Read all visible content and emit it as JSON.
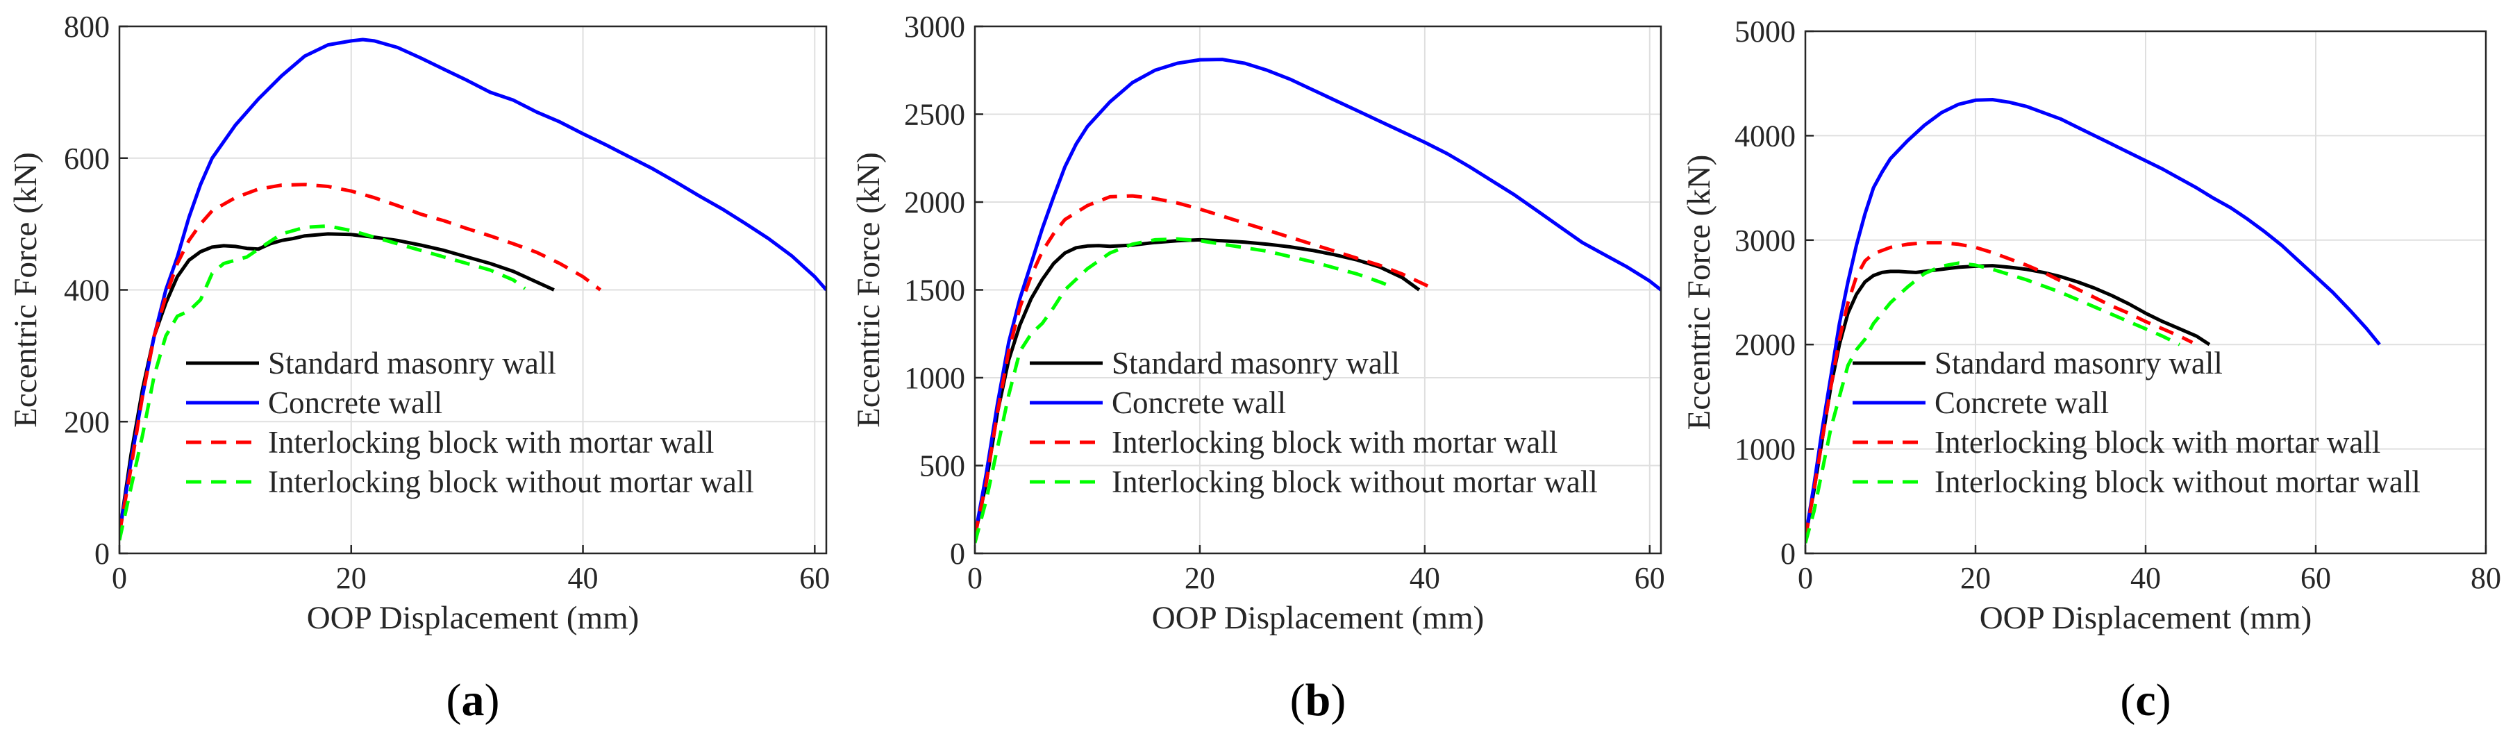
{
  "chart_data": [
    {
      "type": "line",
      "panel_label": "(a)",
      "panel_letter": "a",
      "xlabel": "OOP Displacement (mm)",
      "ylabel": "Eccentric Force (kN)",
      "xlim": [
        0,
        61
      ],
      "ylim": [
        0,
        800
      ],
      "xticks": [
        0,
        20,
        40,
        60
      ],
      "yticks": [
        0,
        200,
        400,
        600,
        800
      ],
      "grid": true,
      "legend_position": "lower-center",
      "series": [
        {
          "name": "Standard masonry wall",
          "color": "#000000",
          "style": "solid",
          "x": [
            0,
            1,
            2,
            3,
            4,
            5,
            6,
            7,
            8,
            9,
            10,
            11,
            12,
            13,
            14,
            15,
            16,
            18,
            20,
            22,
            24,
            26,
            28,
            30,
            32,
            34,
            36,
            37.5
          ],
          "y": [
            30,
            150,
            250,
            330,
            380,
            420,
            445,
            458,
            465,
            467,
            466,
            463,
            462,
            470,
            475,
            478,
            482,
            485,
            484,
            480,
            475,
            468,
            460,
            450,
            440,
            428,
            412,
            400
          ]
        },
        {
          "name": "Concrete wall",
          "color": "#0000ff",
          "style": "solid",
          "x": [
            0,
            1,
            2,
            3,
            4,
            5,
            6,
            7,
            8,
            10,
            12,
            14,
            16,
            18,
            20,
            21,
            22,
            24,
            26,
            28,
            30,
            32,
            34,
            36,
            38,
            40,
            42,
            44,
            46,
            48,
            50,
            52,
            54,
            56,
            58,
            60,
            61
          ],
          "y": [
            30,
            140,
            240,
            330,
            400,
            450,
            510,
            560,
            600,
            650,
            690,
            725,
            755,
            772,
            778,
            780,
            778,
            768,
            752,
            735,
            718,
            700,
            688,
            670,
            655,
            637,
            620,
            602,
            584,
            564,
            543,
            523,
            501,
            478,
            452,
            420,
            400
          ]
        },
        {
          "name": "Interlocking block with mortar wall",
          "color": "#ff0000",
          "style": "dashed",
          "x": [
            0,
            1,
            2,
            3,
            4,
            5,
            6,
            7,
            8,
            10,
            12,
            14,
            16,
            18,
            20,
            22,
            24,
            26,
            28,
            30,
            32,
            34,
            36,
            38,
            40,
            41.5
          ],
          "y": [
            30,
            130,
            240,
            330,
            390,
            440,
            475,
            500,
            520,
            540,
            553,
            559,
            560,
            557,
            550,
            540,
            528,
            515,
            505,
            493,
            482,
            470,
            457,
            440,
            420,
            400
          ]
        },
        {
          "name": "Interlocking block without mortar wall",
          "color": "#00ff00",
          "style": "dashed",
          "x": [
            0,
            1,
            2,
            3,
            4,
            5,
            6,
            7,
            8,
            9,
            10,
            11,
            12,
            14,
            16,
            18,
            20,
            22,
            24,
            26,
            28,
            30,
            32,
            34,
            35
          ],
          "y": [
            20,
            100,
            180,
            270,
            330,
            360,
            368,
            385,
            425,
            440,
            445,
            450,
            462,
            485,
            495,
            497,
            490,
            480,
            470,
            460,
            450,
            440,
            430,
            415,
            402
          ]
        }
      ]
    },
    {
      "type": "line",
      "panel_label": "(b)",
      "panel_letter": "b",
      "xlabel": "OOP Displacement (mm)",
      "ylabel": "Eccentric Force (kN)",
      "xlim": [
        0,
        61
      ],
      "ylim": [
        0,
        3000
      ],
      "xticks": [
        0,
        20,
        40,
        60
      ],
      "yticks": [
        0,
        500,
        1000,
        1500,
        2000,
        2500,
        3000
      ],
      "grid": true,
      "legend_position": "lower-center",
      "series": [
        {
          "name": "Standard masonry wall",
          "color": "#000000",
          "style": "solid",
          "x": [
            0,
            1,
            2,
            3,
            4,
            5,
            6,
            7,
            8,
            9,
            10,
            11,
            12,
            14,
            16,
            18,
            20,
            22,
            24,
            26,
            28,
            30,
            32,
            34,
            36,
            38,
            39.5
          ],
          "y": [
            100,
            400,
            800,
            1100,
            1300,
            1450,
            1560,
            1650,
            1710,
            1740,
            1750,
            1752,
            1748,
            1755,
            1770,
            1780,
            1785,
            1780,
            1772,
            1760,
            1745,
            1725,
            1700,
            1670,
            1630,
            1570,
            1500
          ]
        },
        {
          "name": "Concrete wall",
          "color": "#0000ff",
          "style": "solid",
          "x": [
            0,
            1,
            2,
            3,
            4,
            5,
            6,
            7,
            8,
            9,
            10,
            12,
            14,
            16,
            18,
            20,
            22,
            24,
            26,
            28,
            30,
            32,
            34,
            36,
            38,
            40,
            42,
            44,
            46,
            48,
            50,
            52,
            54,
            56,
            58,
            60,
            61
          ],
          "y": [
            100,
            450,
            850,
            1200,
            1450,
            1650,
            1850,
            2030,
            2200,
            2330,
            2430,
            2570,
            2680,
            2750,
            2790,
            2810,
            2812,
            2790,
            2750,
            2700,
            2640,
            2580,
            2520,
            2460,
            2400,
            2340,
            2275,
            2200,
            2120,
            2040,
            1950,
            1860,
            1770,
            1700,
            1630,
            1550,
            1500
          ]
        },
        {
          "name": "Interlocking block with mortar wall",
          "color": "#ff0000",
          "style": "dashed",
          "x": [
            0,
            1,
            2,
            3,
            4,
            5,
            6,
            7,
            8,
            10,
            12,
            14,
            16,
            18,
            20,
            22,
            24,
            26,
            28,
            30,
            32,
            34,
            36,
            38,
            40,
            41
          ],
          "y": [
            100,
            400,
            800,
            1150,
            1400,
            1580,
            1720,
            1820,
            1900,
            1980,
            2030,
            2035,
            2020,
            1995,
            1960,
            1920,
            1880,
            1840,
            1800,
            1760,
            1720,
            1680,
            1640,
            1590,
            1530,
            1500
          ]
        },
        {
          "name": "Interlocking block without mortar wall",
          "color": "#00ff00",
          "style": "dashed",
          "x": [
            0,
            1,
            2,
            3,
            4,
            5,
            6,
            7,
            8,
            10,
            12,
            14,
            16,
            18,
            20,
            22,
            24,
            26,
            28,
            30,
            32,
            34,
            36,
            37
          ],
          "y": [
            60,
            300,
            600,
            900,
            1150,
            1250,
            1310,
            1400,
            1500,
            1620,
            1710,
            1760,
            1785,
            1790,
            1780,
            1760,
            1740,
            1720,
            1690,
            1660,
            1625,
            1590,
            1545,
            1520
          ]
        }
      ]
    },
    {
      "type": "line",
      "panel_label": "(c)",
      "panel_letter": "c",
      "xlabel": "OOP Displacement (mm)",
      "ylabel": "Eccentric Force (kN)",
      "xlim": [
        0,
        80
      ],
      "ylim": [
        0,
        5000
      ],
      "xticks": [
        0,
        20,
        40,
        60,
        80
      ],
      "yticks": [
        0,
        1000,
        2000,
        3000,
        4000,
        5000
      ],
      "grid": true,
      "legend_position": "lower-center",
      "series": [
        {
          "name": "Standard masonry wall",
          "color": "#000000",
          "style": "solid",
          "x": [
            0,
            1,
            2,
            3,
            4,
            5,
            6,
            7,
            8,
            9,
            10,
            11,
            12,
            13,
            14,
            16,
            18,
            20,
            22,
            24,
            26,
            28,
            30,
            32,
            34,
            36,
            38,
            40,
            42,
            44,
            46,
            47.5
          ],
          "y": [
            150,
            600,
            1100,
            1600,
            2000,
            2300,
            2480,
            2600,
            2660,
            2690,
            2700,
            2700,
            2695,
            2690,
            2700,
            2720,
            2740,
            2750,
            2755,
            2740,
            2720,
            2690,
            2650,
            2600,
            2540,
            2470,
            2390,
            2300,
            2220,
            2150,
            2080,
            2000
          ]
        },
        {
          "name": "Concrete wall",
          "color": "#0000ff",
          "style": "solid",
          "x": [
            0,
            1,
            2,
            3,
            4,
            5,
            6,
            7,
            8,
            9,
            10,
            12,
            14,
            16,
            18,
            20,
            22,
            24,
            26,
            28,
            30,
            32,
            34,
            36,
            38,
            40,
            42,
            44,
            46,
            48,
            50,
            52,
            54,
            56,
            58,
            60,
            62,
            64,
            66,
            67.5
          ],
          "y": [
            150,
            650,
            1200,
            1700,
            2200,
            2600,
            2950,
            3250,
            3500,
            3650,
            3780,
            3950,
            4100,
            4220,
            4300,
            4340,
            4345,
            4320,
            4280,
            4220,
            4160,
            4080,
            4000,
            3920,
            3840,
            3760,
            3680,
            3590,
            3500,
            3400,
            3310,
            3200,
            3080,
            2950,
            2800,
            2650,
            2500,
            2330,
            2150,
            2000
          ]
        },
        {
          "name": "Interlocking block with mortar wall",
          "color": "#ff0000",
          "style": "dashed",
          "x": [
            0,
            1,
            2,
            3,
            4,
            5,
            6,
            7,
            8,
            10,
            12,
            14,
            16,
            18,
            20,
            22,
            24,
            26,
            28,
            30,
            32,
            34,
            36,
            38,
            40,
            42,
            44,
            45.5
          ],
          "y": [
            150,
            600,
            1100,
            1600,
            2050,
            2400,
            2650,
            2800,
            2870,
            2930,
            2960,
            2975,
            2975,
            2960,
            2930,
            2880,
            2820,
            2760,
            2690,
            2610,
            2530,
            2450,
            2370,
            2300,
            2220,
            2150,
            2080,
            2020
          ]
        },
        {
          "name": "Interlocking block without mortar wall",
          "color": "#00ff00",
          "style": "dashed",
          "x": [
            0,
            1,
            2,
            3,
            4,
            5,
            6,
            7,
            8,
            10,
            12,
            14,
            16,
            18,
            20,
            22,
            24,
            26,
            28,
            30,
            32,
            34,
            36,
            38,
            40,
            42,
            44
          ],
          "y": [
            100,
            400,
            800,
            1200,
            1500,
            1800,
            1950,
            2050,
            2200,
            2400,
            2550,
            2680,
            2750,
            2780,
            2760,
            2720,
            2670,
            2620,
            2560,
            2500,
            2430,
            2360,
            2290,
            2220,
            2150,
            2080,
            2000
          ]
        }
      ]
    }
  ]
}
